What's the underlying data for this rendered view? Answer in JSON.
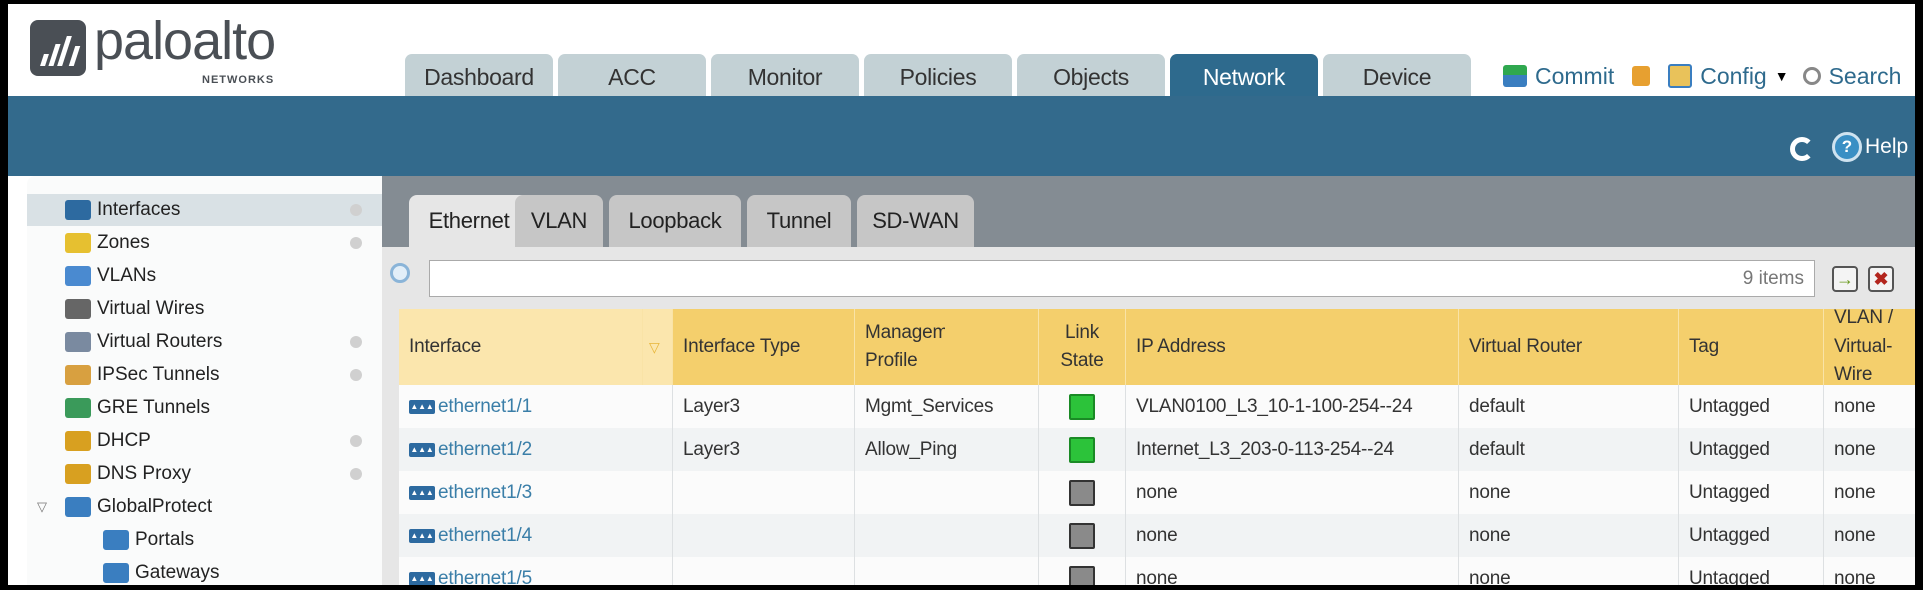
{
  "brand": {
    "name": "paloalto",
    "sub": "NETWORKS"
  },
  "nav": {
    "tabs": [
      {
        "label": "Dashboard"
      },
      {
        "label": "ACC"
      },
      {
        "label": "Monitor"
      },
      {
        "label": "Policies"
      },
      {
        "label": "Objects"
      },
      {
        "label": "Network",
        "active": true
      },
      {
        "label": "Device"
      }
    ],
    "commit": "Commit",
    "config": "Config",
    "search": "Search",
    "help": "Help"
  },
  "sidebar": {
    "items": [
      {
        "label": "Interfaces",
        "icon": "interfaces-icon",
        "selected": true,
        "dot": true
      },
      {
        "label": "Zones",
        "icon": "zones-icon",
        "dot": true
      },
      {
        "label": "VLANs",
        "icon": "vlans-icon"
      },
      {
        "label": "Virtual Wires",
        "icon": "virtual-wires-icon"
      },
      {
        "label": "Virtual Routers",
        "icon": "virtual-routers-icon",
        "dot": true
      },
      {
        "label": "IPSec Tunnels",
        "icon": "ipsec-tunnels-icon",
        "dot": true
      },
      {
        "label": "GRE Tunnels",
        "icon": "gre-tunnels-icon"
      },
      {
        "label": "DHCP",
        "icon": "dhcp-icon",
        "dot": true
      },
      {
        "label": "DNS Proxy",
        "icon": "dns-proxy-icon",
        "dot": true
      },
      {
        "label": "GlobalProtect",
        "icon": "globalprotect-icon",
        "expanded": true
      },
      {
        "label": "Portals",
        "icon": "portals-icon",
        "child": true
      },
      {
        "label": "Gateways",
        "icon": "gateways-icon",
        "child": true
      }
    ]
  },
  "subtabs": [
    {
      "label": "Ethernet",
      "active": true
    },
    {
      "label": "VLAN"
    },
    {
      "label": "Loopback"
    },
    {
      "label": "Tunnel"
    },
    {
      "label": "SD-WAN"
    }
  ],
  "filter": {
    "value": "",
    "count": "9 items"
  },
  "table": {
    "columns": [
      "Interface",
      "Interface Type",
      "Management Profile",
      "Link State",
      "IP Address",
      "Virtual Router",
      "Tag",
      "VLAN / Virtual-Wire"
    ],
    "sort_column": "Interface",
    "rows": [
      {
        "interface": "ethernet1/1",
        "type": "Layer3",
        "profile": "Mgmt_Services",
        "link": "up",
        "ip": "VLAN0100_L3_10-1-100-254--24",
        "router": "default",
        "tag": "Untagged",
        "vlan": "none"
      },
      {
        "interface": "ethernet1/2",
        "type": "Layer3",
        "profile": "Allow_Ping",
        "link": "up",
        "ip": "Internet_L3_203-0-113-254--24",
        "router": "default",
        "tag": "Untagged",
        "vlan": "none"
      },
      {
        "interface": "ethernet1/3",
        "type": "",
        "profile": "",
        "link": "down",
        "ip": "none",
        "router": "none",
        "tag": "Untagged",
        "vlan": "none"
      },
      {
        "interface": "ethernet1/4",
        "type": "",
        "profile": "",
        "link": "down",
        "ip": "none",
        "router": "none",
        "tag": "Untagged",
        "vlan": "none"
      },
      {
        "interface": "ethernet1/5",
        "type": "",
        "profile": "",
        "link": "down",
        "ip": "none",
        "router": "none",
        "tag": "Untagged",
        "vlan": "none"
      }
    ]
  },
  "colors": {
    "band": "#336a8c",
    "active_tab": "#2e6a8d",
    "header_row": "#f4cf6c",
    "link": "#3a7ea8",
    "link_up": "#2cc33a"
  }
}
